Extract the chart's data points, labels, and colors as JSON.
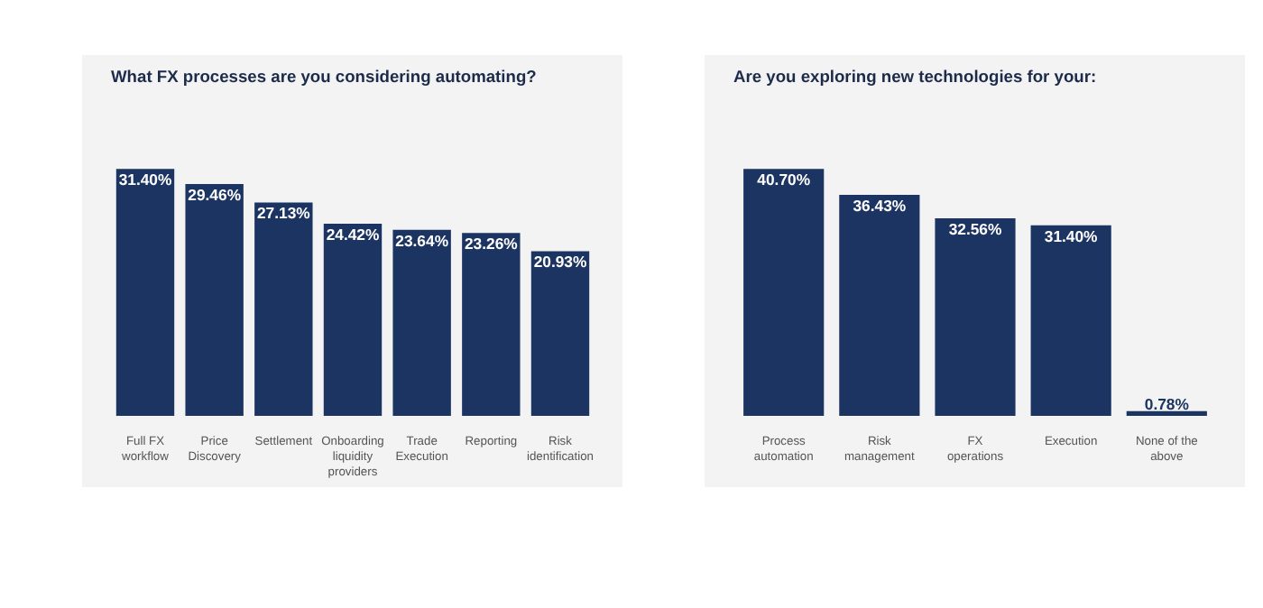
{
  "chart_data": [
    {
      "type": "bar",
      "title": "What FX processes are you considering automating?",
      "categories": [
        "Full FX workflow",
        "Price Discovery",
        "Settlement",
        "Onboarding liquidity providers",
        "Trade Execution",
        "Reporting",
        "Risk identification"
      ],
      "values": [
        31.4,
        29.46,
        27.13,
        24.42,
        23.64,
        23.26,
        20.93
      ],
      "value_labels": [
        "31.40%",
        "29.46%",
        "27.13%",
        "24.42%",
        "23.64%",
        "23.26%",
        "20.93%"
      ],
      "color": "#1c3461",
      "grid": false,
      "legend": false
    },
    {
      "type": "bar",
      "title": "Are you exploring new technologies for your:",
      "categories": [
        "Process automation",
        "Risk management",
        "FX operations",
        "Execution",
        "None of the above"
      ],
      "values": [
        40.7,
        36.43,
        32.56,
        31.4,
        0.78
      ],
      "value_labels": [
        "40.70%",
        "36.43%",
        "32.56%",
        "31.40%",
        "0.78%"
      ],
      "color": "#1c3461",
      "grid": false,
      "legend": false
    }
  ]
}
